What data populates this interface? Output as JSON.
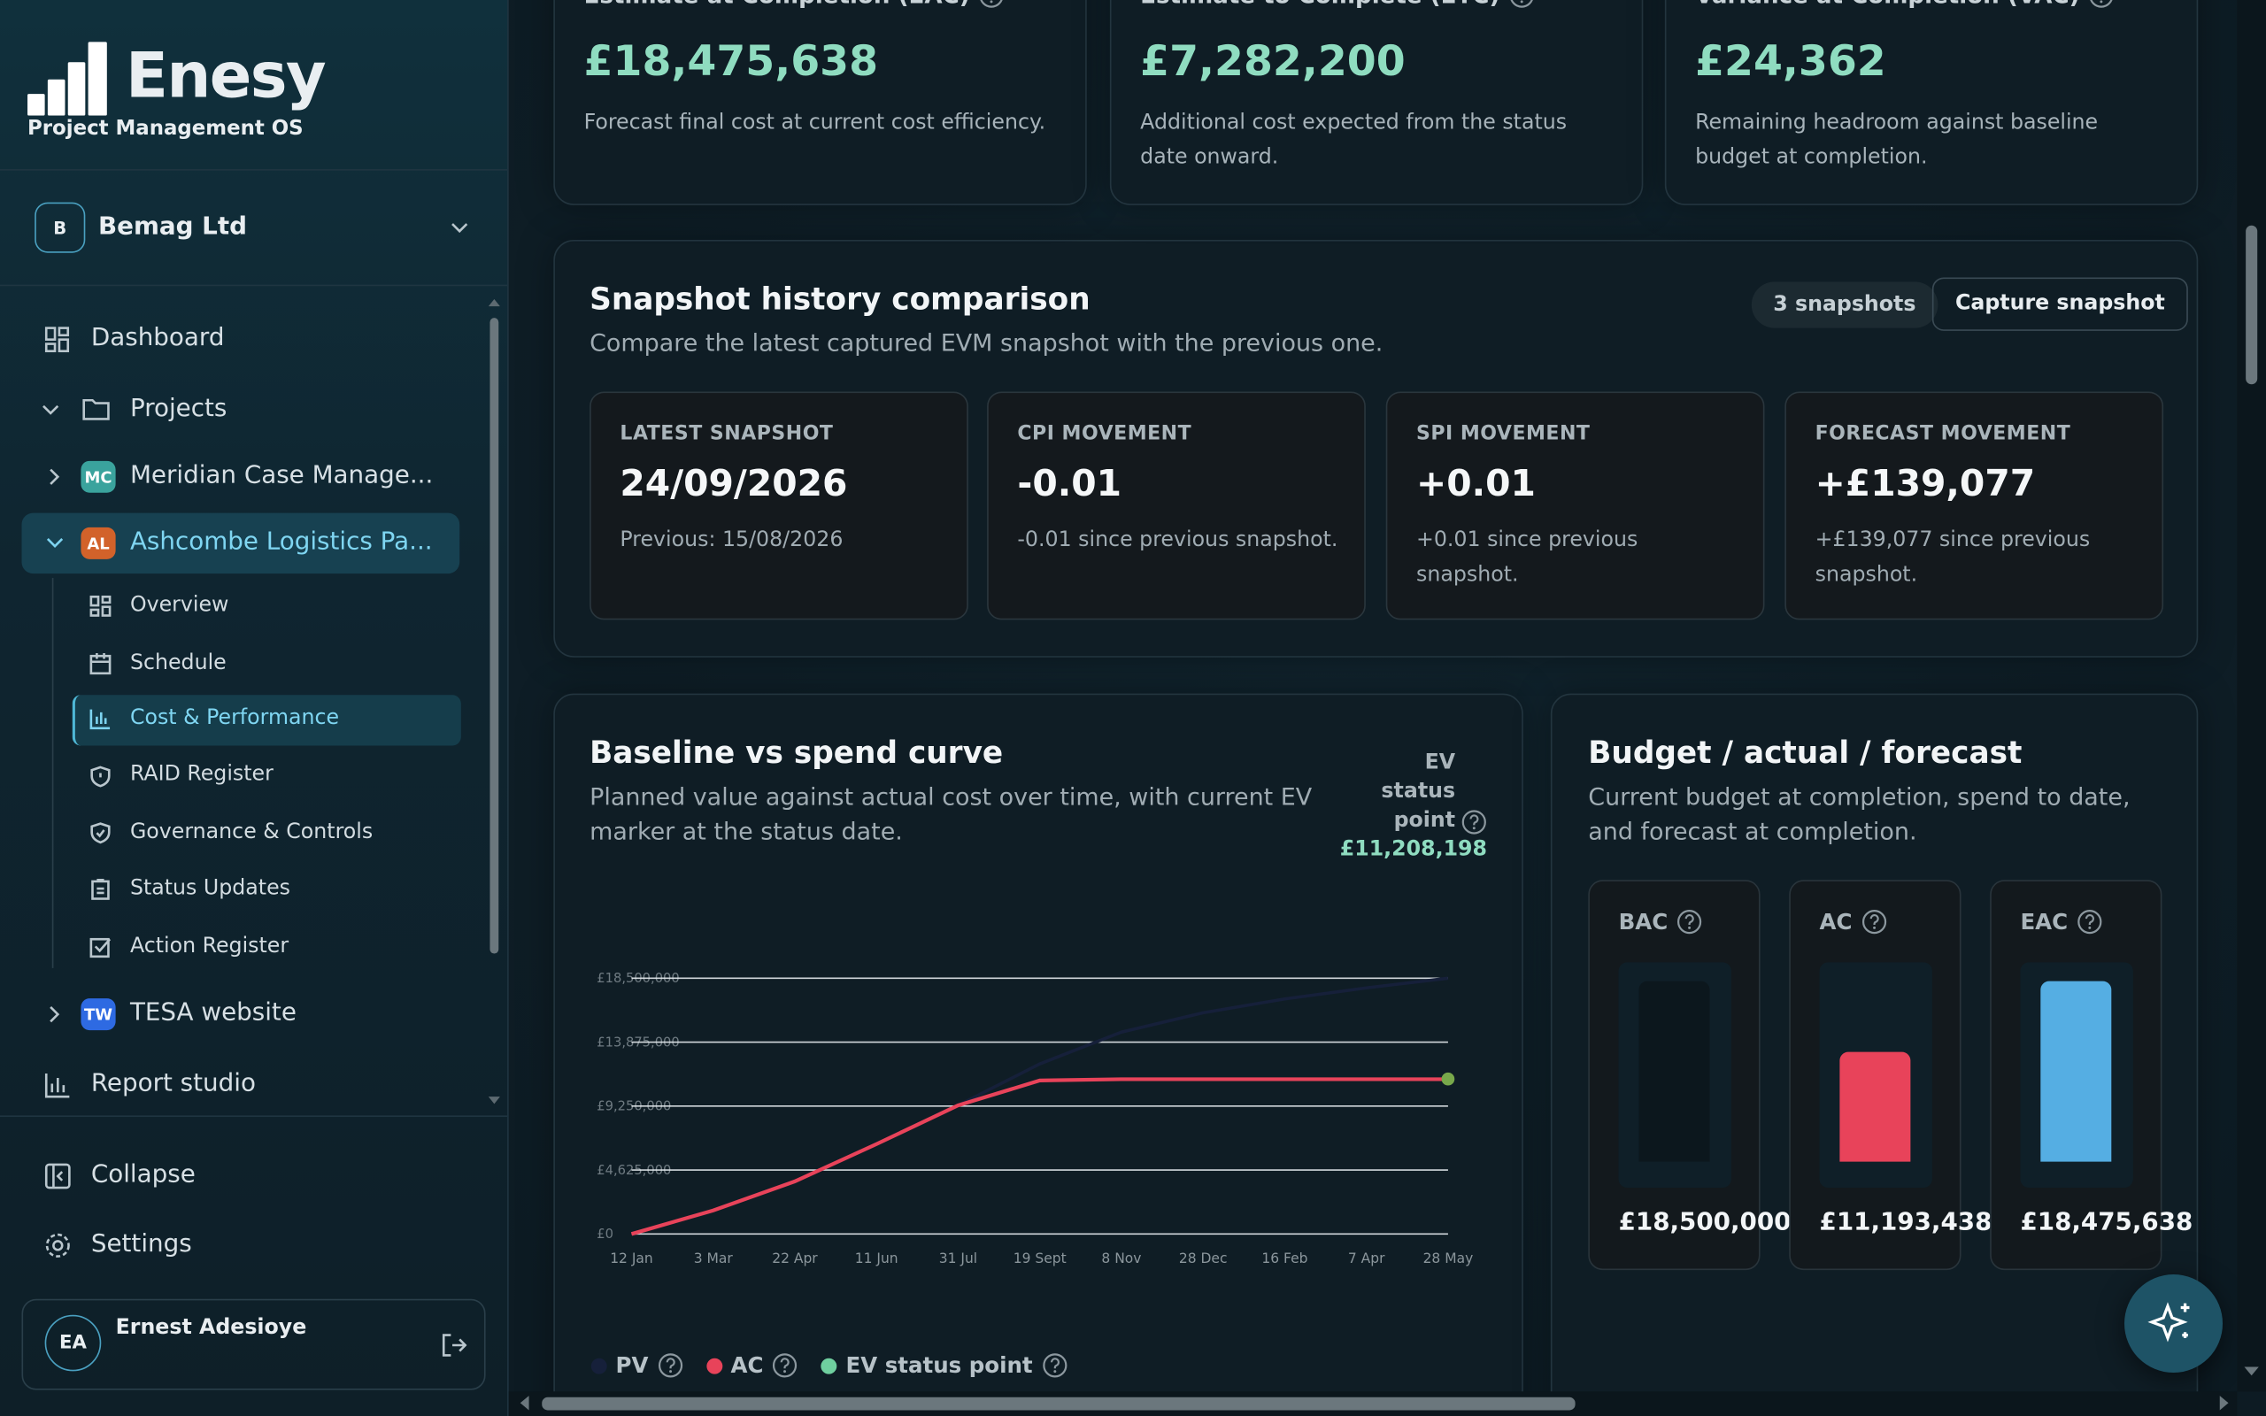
{
  "sidebar": {
    "brand": "Enesy",
    "tagline": "Project Management OS",
    "org_initial": "B",
    "org_name": "Bemag Ltd",
    "dashboard": "Dashboard",
    "projects": "Projects",
    "project_list": [
      {
        "badge": "MC",
        "name": "Meridian Case Manage..."
      },
      {
        "badge": "AL",
        "name": "Ashcombe Logistics Pa..."
      },
      {
        "badge": "TW",
        "name": "TESA website"
      }
    ],
    "sub_nav": [
      "Overview",
      "Schedule",
      "Cost & Performance",
      "RAID Register",
      "Governance & Controls",
      "Status Updates",
      "Action Register"
    ],
    "report_studio": "Report studio",
    "collapse": "Collapse",
    "settings": "Settings",
    "user": {
      "initials": "EA",
      "name": "Ernest Adesioye"
    }
  },
  "kpis": [
    {
      "label": "Estimate at Completion (EAC)",
      "value": "£18,475,638",
      "note": "Forecast final cost at current cost efficiency."
    },
    {
      "label": "Estimate to Complete (ETC)",
      "value": "£7,282,200",
      "note": "Additional cost expected from the status date onward."
    },
    {
      "label": "Variance at Completion (VAC)",
      "value": "£24,362",
      "note": "Remaining headroom against baseline budget at completion."
    }
  ],
  "snapshot": {
    "title": "Snapshot history comparison",
    "subtitle": "Compare the latest captured EVM snapshot with the previous one.",
    "count": "3 snapshots",
    "action": "Capture snapshot",
    "cards": [
      {
        "label": "LATEST SNAPSHOT",
        "value": "24/09/2026",
        "note": "Previous: 15/08/2026"
      },
      {
        "label": "CPI MOVEMENT",
        "value": "-0.01",
        "note": "-0.01 since previous snapshot."
      },
      {
        "label": "SPI MOVEMENT",
        "value": "+0.01",
        "note": "+0.01 since previous snapshot."
      },
      {
        "label": "FORECAST MOVEMENT",
        "value": "+£139,077",
        "note": "+£139,077 since previous snapshot."
      }
    ]
  },
  "chart_data": [
    {
      "type": "line",
      "title": "Baseline vs spend curve",
      "subtitle": "Planned value against actual cost over time, with current EV marker at the status date.",
      "categories": [
        "12 Jan",
        "3 Mar",
        "22 Apr",
        "11 Jun",
        "31 Jul",
        "19 Sept",
        "8 Nov",
        "28 Dec",
        "16 Feb",
        "7 Apr",
        "28 May"
      ],
      "ylim": [
        0,
        18500000
      ],
      "yticks": [
        {
          "value": 0,
          "label": "£0"
        },
        {
          "value": 4625000,
          "label": "£4,625,000"
        },
        {
          "value": 9250000,
          "label": "£9,250,000"
        },
        {
          "value": 13875000,
          "label": "£13,875,000"
        },
        {
          "value": 18500000,
          "label": "£18,500,000"
        }
      ],
      "grid": true,
      "series": [
        {
          "name": "PV",
          "color": "#16203a",
          "values": [
            0,
            1700000,
            3800000,
            6500000,
            9300000,
            12300000,
            14600000,
            16000000,
            17000000,
            17800000,
            18500000
          ]
        },
        {
          "name": "AC",
          "color": "#e8435a",
          "values": [
            0,
            1700000,
            3800000,
            6500000,
            9300000,
            11100000,
            11193438,
            11193438,
            11193438,
            11193438,
            11193438
          ]
        },
        {
          "name": "EV status point",
          "color": "#6fcf9f",
          "values": [
            null,
            null,
            null,
            null,
            null,
            null,
            null,
            null,
            null,
            null,
            11208198
          ],
          "value_labels": [
            null,
            null,
            null,
            null,
            null,
            null,
            null,
            null,
            null,
            null,
            "£11,208,198"
          ]
        }
      ]
    },
    {
      "type": "bar",
      "title": "Budget / actual / forecast",
      "subtitle": "Current budget at completion, spend to date, and forecast at completion.",
      "categories": [
        "BAC",
        "AC",
        "EAC"
      ],
      "values": [
        18500000,
        11193438,
        18475638
      ],
      "value_labels": [
        "£18,500,000",
        "£11,193,438",
        "£18,475,638"
      ],
      "colors": [
        "#0c171d",
        "#e8435a",
        "#55aee3"
      ],
      "ylim": [
        0,
        18500000
      ]
    }
  ]
}
